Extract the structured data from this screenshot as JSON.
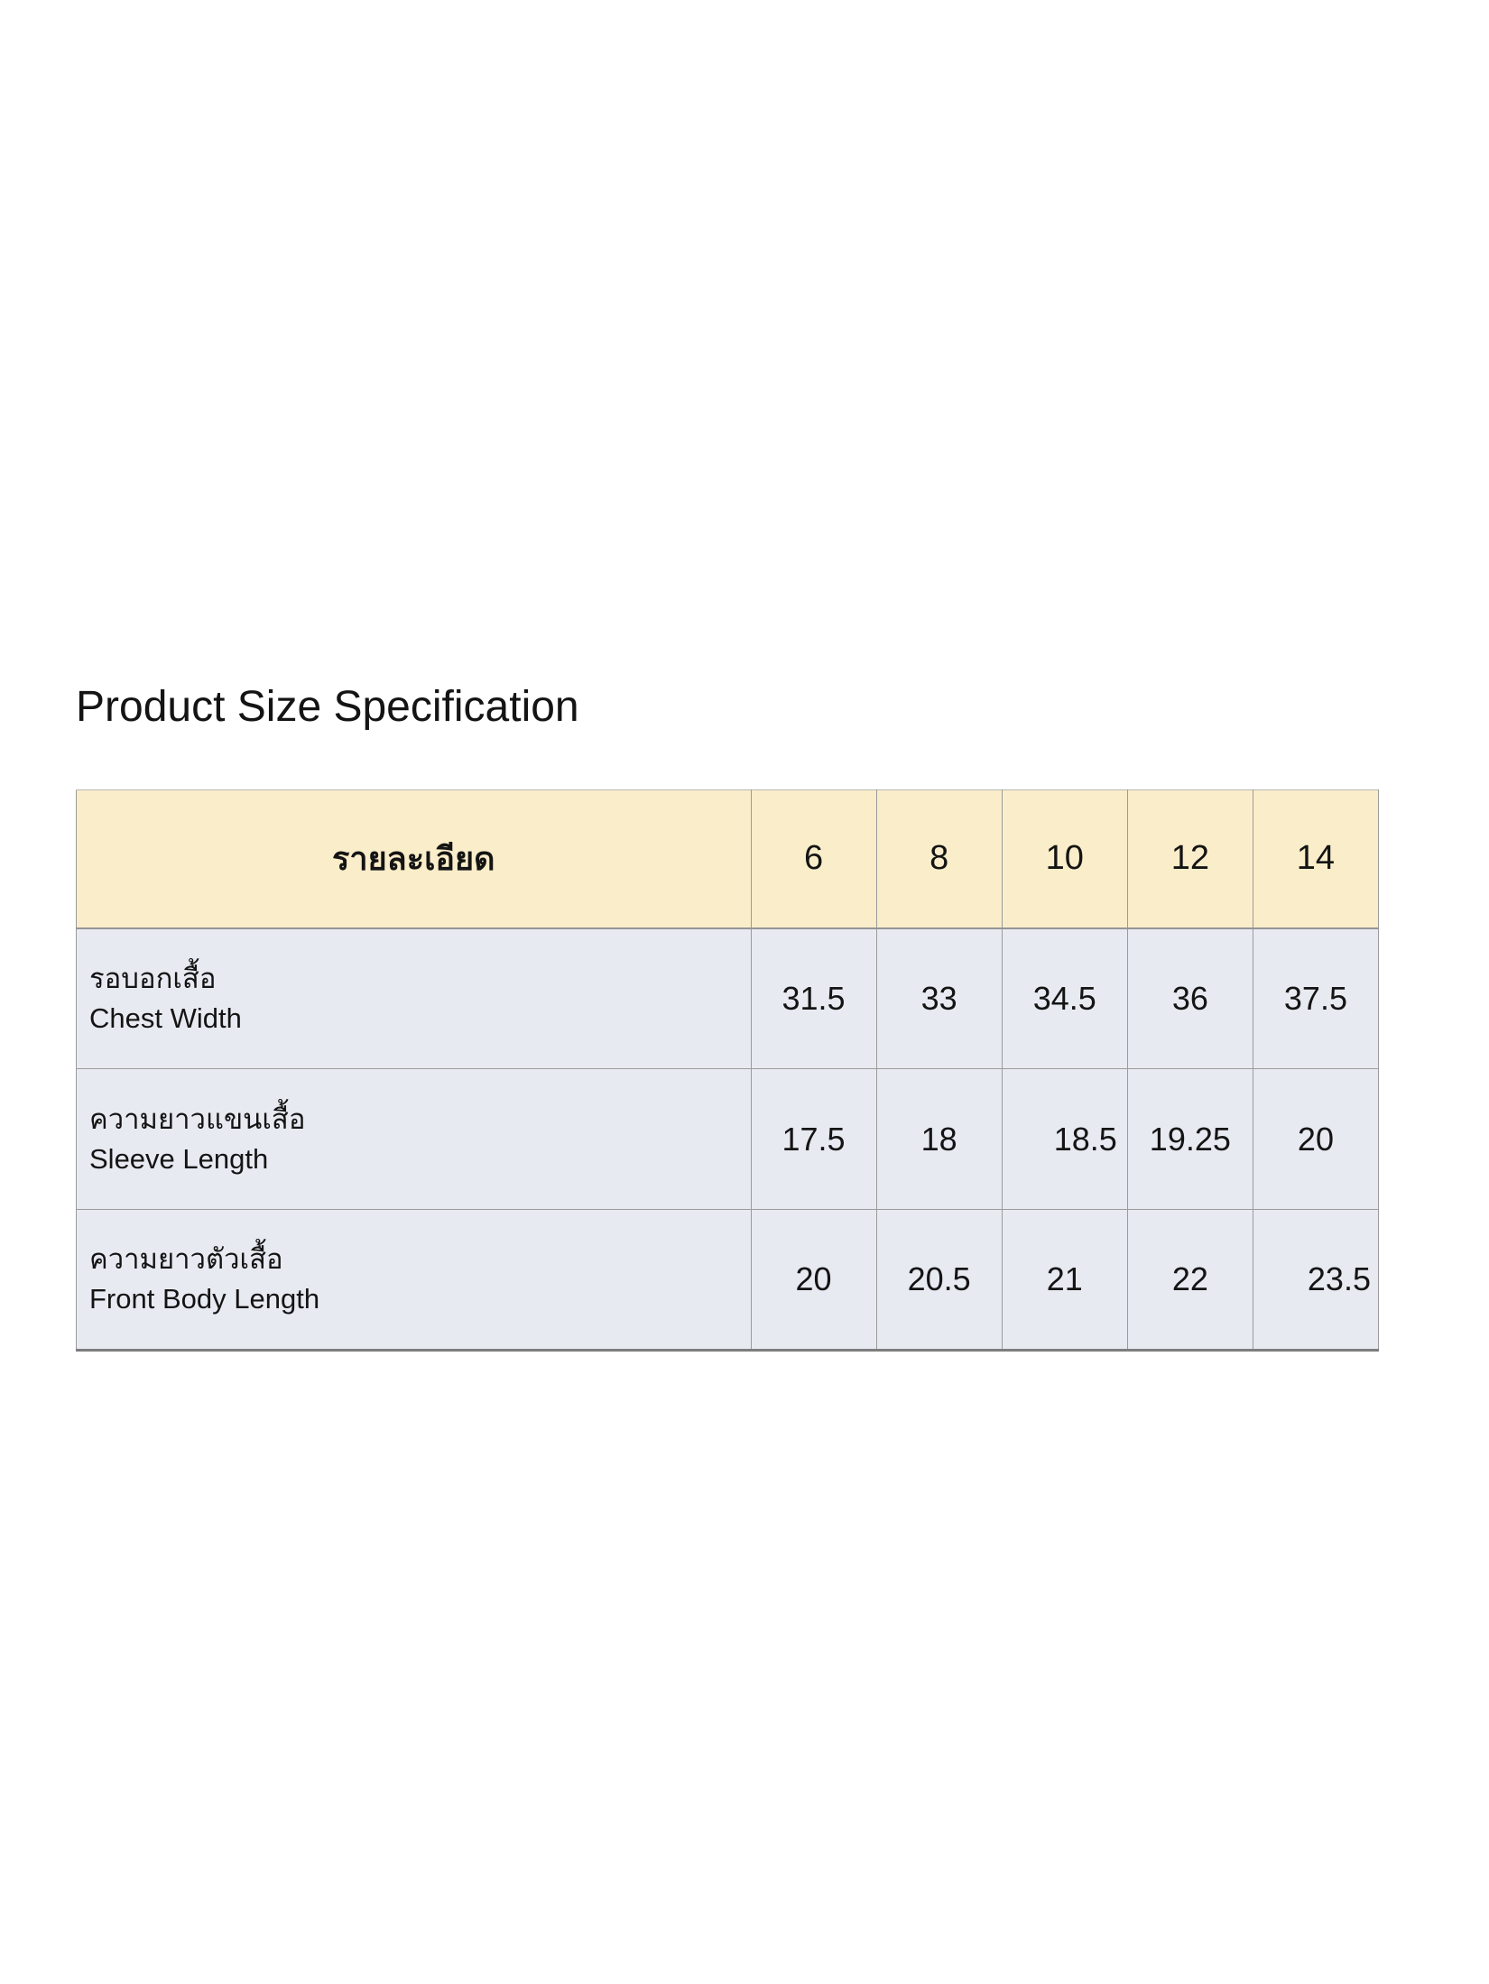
{
  "title": "Product Size Specification",
  "table": {
    "header": {
      "details_label": "รายละเอียด",
      "sizes": [
        "6",
        "8",
        "10",
        "12",
        "14"
      ]
    },
    "rows": [
      {
        "label_th": "รอบอกเสื้อ",
        "label_en": "Chest Width",
        "values": [
          "31.5",
          "33",
          "34.5",
          "36",
          "37.5"
        ]
      },
      {
        "label_th": "ความยาวแขนเสื้อ",
        "label_en": "Sleeve Length",
        "values": [
          "17.5",
          "18",
          "18.5",
          "19.25",
          "20"
        ]
      },
      {
        "label_th": "ความยาวตัวเสื้อ",
        "label_en": "Front Body Length",
        "values": [
          "20",
          "20.5",
          "21",
          "22",
          "23.5"
        ]
      }
    ]
  },
  "colors": {
    "header_bg": "#FAEDC9",
    "row_bg": "#E8EAF2",
    "border": "#9B9B9B",
    "text": "#141414",
    "page_bg": "#FFFFFF"
  }
}
